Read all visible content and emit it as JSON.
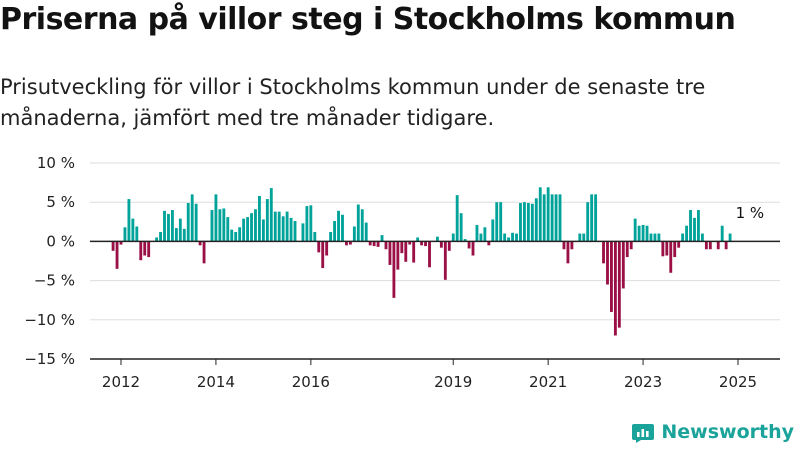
{
  "title": "Priserna på villor steg i Stockholms kommun",
  "subtitle": "Prisutveckling för villor i Stockholms kommun under de senaste tre månaderna, jämfört med tre månader tidigare.",
  "colors": {
    "positive": "#00a39a",
    "negative": "#9a0f45",
    "axis": "#222222",
    "grid": "#dddddd",
    "brand": "#1aa39a"
  },
  "brand": {
    "name": "Newsworthy",
    "icon": "bar-chart-logo-icon"
  },
  "chart_data": {
    "type": "bar",
    "title": "Priserna på villor steg i Stockholms kommun",
    "xlabel": "",
    "ylabel": "",
    "ylim": [
      -15,
      10
    ],
    "y_ticks": [
      10,
      5,
      0,
      -5,
      -10,
      -15
    ],
    "y_tick_labels": [
      "10 %",
      "5 %",
      "0 %",
      "−5 %",
      "−10 %",
      "−15 %"
    ],
    "x_ticks": [
      "2012",
      "2014",
      "2016",
      "2019",
      "2021",
      "2023",
      "2025"
    ],
    "x_tick_dates": [
      "2012-01",
      "2014-01",
      "2016-01",
      "2019-01",
      "2021-01",
      "2023-01",
      "2025-01"
    ],
    "grid": true,
    "start": "2011-11",
    "annotation": {
      "label": "1 %",
      "date": "2025-03"
    },
    "values": [
      -1.2,
      -3.5,
      -0.4,
      1.8,
      5.4,
      2.9,
      1.9,
      -2.4,
      -1.8,
      -2.0,
      0.0,
      0.5,
      1.2,
      3.9,
      3.5,
      4.0,
      1.7,
      2.9,
      1.6,
      4.9,
      6.0,
      4.8,
      -0.5,
      -2.8,
      0.0,
      4.0,
      6.0,
      4.1,
      4.2,
      3.1,
      1.5,
      1.2,
      1.8,
      2.9,
      3.1,
      3.6,
      4.1,
      5.8,
      2.8,
      5.4,
      6.8,
      3.8,
      3.8,
      3.2,
      3.8,
      3.0,
      2.6,
      0.0,
      2.3,
      4.5,
      4.6,
      1.2,
      -1.4,
      -3.4,
      -1.8,
      1.2,
      2.6,
      3.9,
      3.4,
      -0.5,
      -0.4,
      1.9,
      4.7,
      4.1,
      2.4,
      -0.5,
      -0.6,
      -0.7,
      0.8,
      -1.0,
      -3.0,
      -7.2,
      -3.6,
      -1.5,
      -2.6,
      -0.4,
      -2.7,
      0.5,
      -0.5,
      -0.6,
      -3.3,
      0.0,
      0.6,
      -0.8,
      -4.9,
      -1.2,
      1.0,
      5.9,
      3.6,
      0.3,
      -0.9,
      -1.8,
      2.1,
      1.0,
      1.8,
      -0.5,
      2.8,
      5.0,
      5.0,
      1.0,
      0.5,
      1.1,
      1.0,
      4.9,
      5.0,
      4.9,
      4.8,
      5.5,
      6.9,
      6.0,
      6.9,
      6.0,
      6.0,
      6.0,
      -1.0,
      -2.8,
      -1.0,
      0.0,
      1.0,
      1.0,
      5.0,
      6.0,
      6.0,
      0.0,
      -2.8,
      -5.5,
      -9.0,
      -12.0,
      -11.0,
      -6.0,
      -2.0,
      -1.0,
      2.9,
      2.0,
      2.1,
      2.0,
      1.0,
      1.0,
      1.0,
      -1.9,
      -1.8,
      -4.0,
      -2.0,
      -0.8,
      1.0,
      2.0,
      4.0,
      3.0,
      4.0,
      1.0,
      -1.0,
      -1.0,
      0.0,
      -1.0,
      2.0,
      -1.0,
      1.0
    ]
  }
}
